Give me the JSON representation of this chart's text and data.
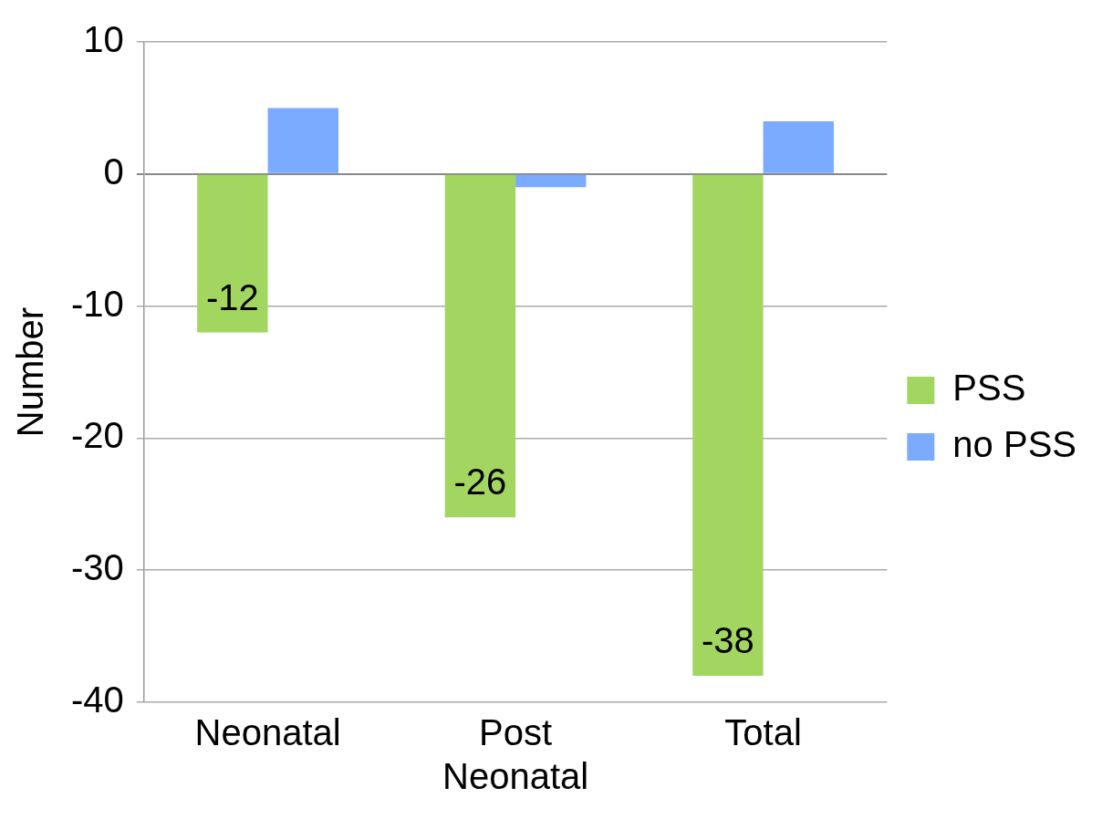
{
  "chart_data": {
    "type": "bar",
    "ylabel": "Number",
    "categories": [
      "Neonatal",
      "Post Neonatal",
      "Total"
    ],
    "series": [
      {
        "name": "PSS",
        "color": "#a2d661",
        "values": [
          -12,
          -26,
          -38
        ],
        "value_labels": [
          "-12",
          "-26",
          "-38"
        ]
      },
      {
        "name": "no PSS",
        "color": "#7aabff",
        "values": [
          5,
          -1,
          4
        ]
      }
    ],
    "ylim": [
      -40,
      10
    ],
    "yticks": [
      10,
      0,
      -10,
      -20,
      -30,
      -40
    ],
    "grid": "y",
    "legend": "right"
  }
}
